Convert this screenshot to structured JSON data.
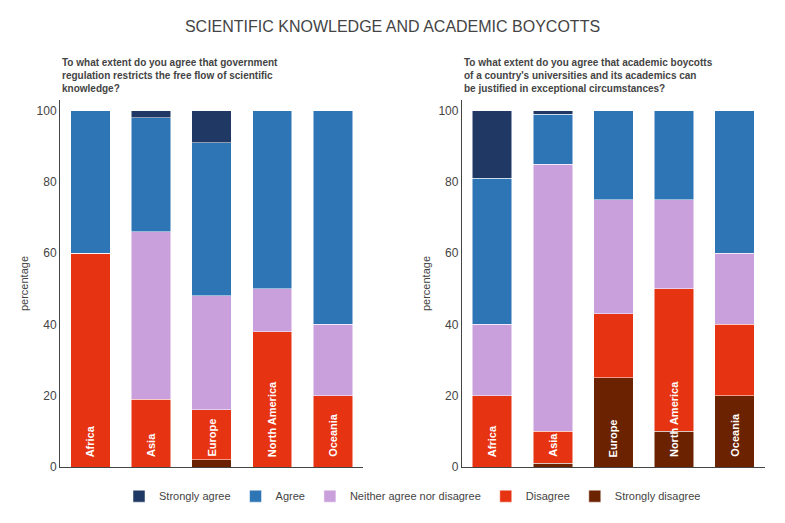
{
  "title": "SCIENTIFIC KNOWLEDGE AND ACADEMIC BOYCOTTS",
  "chart_data": [
    {
      "type": "bar",
      "stacked": true,
      "grid": false,
      "legend": "bottom",
      "tick_labels": "y",
      "title": "To what extent do you agree that government\nregulation restricts the free flow of scientific\nknowledge?",
      "ylabel": "percentage",
      "categories": [
        "Africa",
        "Asia",
        "Europe",
        "North America",
        "Oceania"
      ],
      "ylim": [
        0,
        103
      ],
      "yticks": [
        0,
        20,
        40,
        60,
        80,
        100
      ],
      "series": [
        {
          "name": "Strongly disagree",
          "color": "#6b2200",
          "values": [
            0,
            0,
            2,
            0,
            0
          ]
        },
        {
          "name": "Disagree",
          "color": "#e63312",
          "values": [
            60,
            19,
            14,
            38,
            20
          ]
        },
        {
          "name": "Neither agree nor disagree",
          "color": "#c9a0dc",
          "values": [
            0,
            47,
            32,
            12,
            20
          ]
        },
        {
          "name": "Agree",
          "color": "#2e75b6",
          "values": [
            40,
            32,
            43,
            50,
            60
          ]
        },
        {
          "name": "Strongly agree",
          "color": "#1f3864",
          "values": [
            0,
            2,
            9,
            0,
            0
          ]
        }
      ]
    },
    {
      "type": "bar",
      "stacked": true,
      "grid": false,
      "legend": "bottom",
      "tick_labels": "y",
      "title": "To what extent do you agree that academic boycotts\nof a country's universities and its academics can\nbe justified in exceptional circumstances?",
      "ylabel": "percentage",
      "categories": [
        "Africa",
        "Asia",
        "Europe",
        "North America",
        "Oceania"
      ],
      "ylim": [
        0,
        103
      ],
      "yticks": [
        0,
        20,
        40,
        60,
        80,
        100
      ],
      "series": [
        {
          "name": "Strongly disagree",
          "color": "#6b2200",
          "values": [
            0,
            1,
            25,
            10,
            20
          ]
        },
        {
          "name": "Disagree",
          "color": "#e63312",
          "values": [
            20,
            9,
            18,
            40,
            20
          ]
        },
        {
          "name": "Neither agree nor disagree",
          "color": "#c9a0dc",
          "values": [
            20,
            75,
            32,
            25,
            20
          ]
        },
        {
          "name": "Agree",
          "color": "#2e75b6",
          "values": [
            41,
            14,
            25,
            25,
            40
          ]
        },
        {
          "name": "Strongly agree",
          "color": "#1f3864",
          "values": [
            19,
            1,
            0,
            0,
            0
          ]
        }
      ]
    }
  ]
}
